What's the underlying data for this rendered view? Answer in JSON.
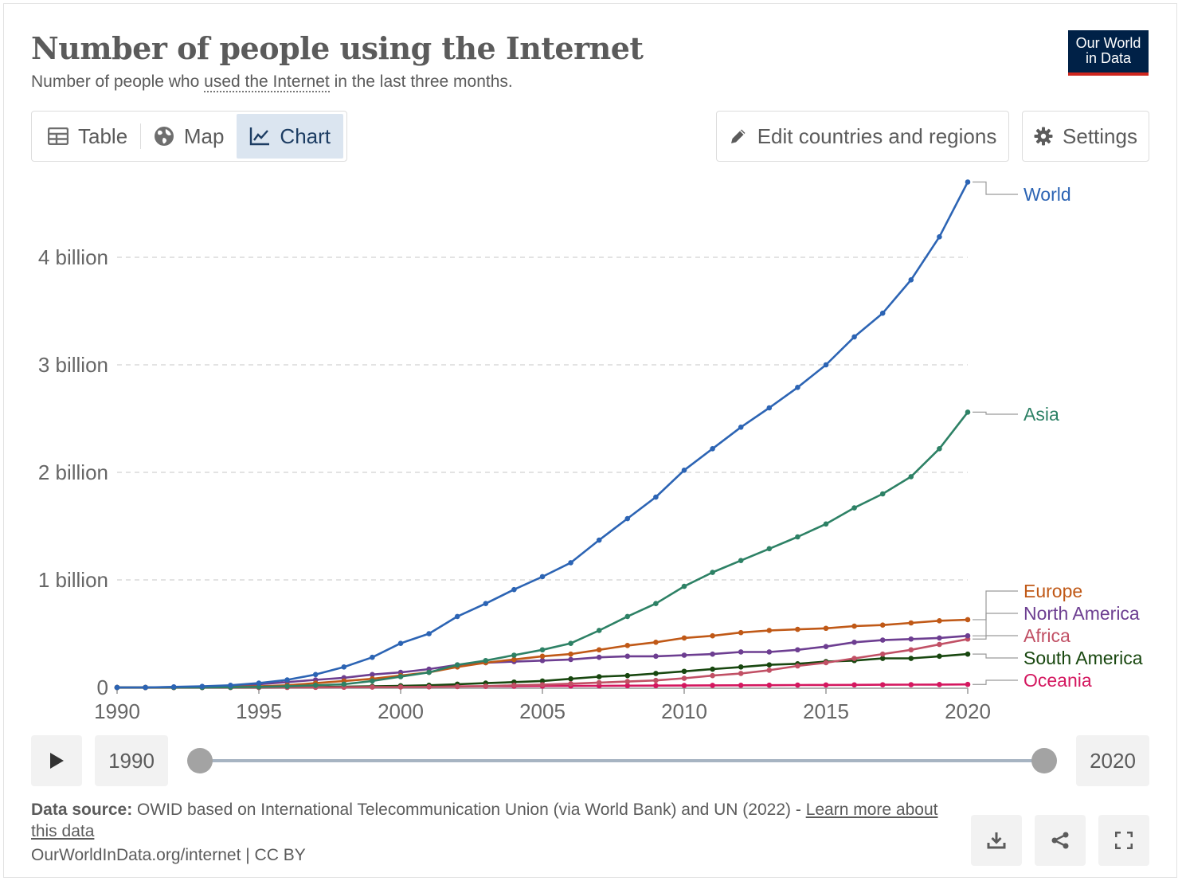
{
  "header": {
    "title": "Number of people using the Internet",
    "subtitle_before": "Number of people who ",
    "subtitle_link": "used the Internet",
    "subtitle_after": " in the last three months.",
    "logo_line1": "Our World",
    "logo_line2": "in Data"
  },
  "tabs": [
    {
      "label": "Table",
      "icon": "table-icon"
    },
    {
      "label": "Map",
      "icon": "globe-icon"
    },
    {
      "label": "Chart",
      "icon": "line-chart-icon",
      "active": true
    }
  ],
  "toolbar": {
    "edit_label": "Edit countries and regions",
    "settings_label": "Settings"
  },
  "timeline": {
    "start_year": "1990",
    "end_year": "2020"
  },
  "footer": {
    "source_label": "Data source:",
    "source_text": " OWID based on International Telecommunication Union (via World Bank) and UN (2022) - ",
    "learn_more": "Learn more about this data",
    "url": "OurWorldInData.org/internet | CC BY"
  },
  "chart_data": {
    "type": "line",
    "title": "Number of people using the Internet",
    "xlabel": "",
    "ylabel": "",
    "xlim": [
      1990,
      2020
    ],
    "ylim": [
      0,
      4.7
    ],
    "x_ticks": [
      1990,
      1995,
      2000,
      2005,
      2010,
      2015,
      2020
    ],
    "y_ticks": [
      {
        "value": 0,
        "label": "0"
      },
      {
        "value": 1,
        "label": "1 billion"
      },
      {
        "value": 2,
        "label": "2 billion"
      },
      {
        "value": 3,
        "label": "3 billion"
      },
      {
        "value": 4,
        "label": "4 billion"
      }
    ],
    "y_unit": "billion",
    "grid": "horizontal dashed",
    "legend": "right, labels at line ends",
    "x": [
      1990,
      1991,
      1992,
      1993,
      1994,
      1995,
      1996,
      1997,
      1998,
      1999,
      2000,
      2001,
      2002,
      2003,
      2004,
      2005,
      2006,
      2007,
      2008,
      2009,
      2010,
      2011,
      2012,
      2013,
      2014,
      2015,
      2016,
      2017,
      2018,
      2019,
      2020
    ],
    "series": [
      {
        "name": "World",
        "color": "#2c64b4",
        "values": [
          0,
          0,
          0.005,
          0.01,
          0.02,
          0.04,
          0.07,
          0.12,
          0.19,
          0.28,
          0.41,
          0.5,
          0.66,
          0.78,
          0.91,
          1.03,
          1.16,
          1.37,
          1.57,
          1.77,
          2.02,
          2.22,
          2.42,
          2.6,
          2.79,
          3.0,
          3.26,
          3.48,
          3.79,
          4.19,
          4.7
        ]
      },
      {
        "name": "Asia",
        "color": "#2d8165",
        "values": [
          0,
          0,
          0,
          0,
          0.002,
          0.005,
          0.01,
          0.02,
          0.03,
          0.06,
          0.1,
          0.14,
          0.21,
          0.25,
          0.3,
          0.35,
          0.41,
          0.53,
          0.66,
          0.78,
          0.94,
          1.07,
          1.18,
          1.29,
          1.4,
          1.52,
          1.67,
          1.8,
          1.96,
          2.22,
          2.56
        ]
      },
      {
        "name": "Europe",
        "color": "#c05917",
        "values": [
          0,
          0,
          0,
          0.002,
          0.005,
          0.01,
          0.02,
          0.04,
          0.06,
          0.08,
          0.11,
          0.14,
          0.19,
          0.23,
          0.26,
          0.29,
          0.31,
          0.35,
          0.39,
          0.42,
          0.46,
          0.48,
          0.51,
          0.53,
          0.54,
          0.55,
          0.57,
          0.58,
          0.6,
          0.62,
          0.63
        ]
      },
      {
        "name": "North America",
        "color": "#6d3e91",
        "values": [
          0,
          0,
          0.003,
          0.007,
          0.015,
          0.03,
          0.05,
          0.07,
          0.09,
          0.12,
          0.14,
          0.17,
          0.21,
          0.23,
          0.24,
          0.25,
          0.26,
          0.28,
          0.29,
          0.29,
          0.3,
          0.31,
          0.33,
          0.33,
          0.35,
          0.38,
          0.42,
          0.44,
          0.45,
          0.46,
          0.48
        ]
      },
      {
        "name": "Africa",
        "color": "#c15065",
        "values": [
          0,
          0,
          0,
          0,
          0,
          0,
          0,
          0.001,
          0.002,
          0.003,
          0.004,
          0.005,
          0.008,
          0.012,
          0.02,
          0.025,
          0.035,
          0.045,
          0.055,
          0.065,
          0.085,
          0.11,
          0.13,
          0.16,
          0.2,
          0.23,
          0.27,
          0.31,
          0.35,
          0.4,
          0.45
        ]
      },
      {
        "name": "South America",
        "color": "#18470f",
        "values": [
          0,
          0,
          0,
          0,
          0,
          0.001,
          0.002,
          0.004,
          0.007,
          0.01,
          0.015,
          0.02,
          0.03,
          0.04,
          0.05,
          0.06,
          0.08,
          0.1,
          0.11,
          0.13,
          0.15,
          0.17,
          0.19,
          0.21,
          0.22,
          0.24,
          0.25,
          0.27,
          0.27,
          0.29,
          0.31
        ]
      },
      {
        "name": "Oceania",
        "color": "#d4175f",
        "values": [
          0,
          0,
          0,
          0,
          0.001,
          0.001,
          0.002,
          0.003,
          0.004,
          0.005,
          0.007,
          0.008,
          0.01,
          0.011,
          0.012,
          0.013,
          0.014,
          0.015,
          0.016,
          0.017,
          0.018,
          0.019,
          0.02,
          0.021,
          0.022,
          0.023,
          0.024,
          0.025,
          0.026,
          0.027,
          0.028
        ]
      }
    ],
    "label_positions": {
      "World": 244,
      "Asia": 520,
      "Europe": 742,
      "North America": 770,
      "Africa": 798,
      "South America": 826,
      "Oceania": 854
    }
  }
}
